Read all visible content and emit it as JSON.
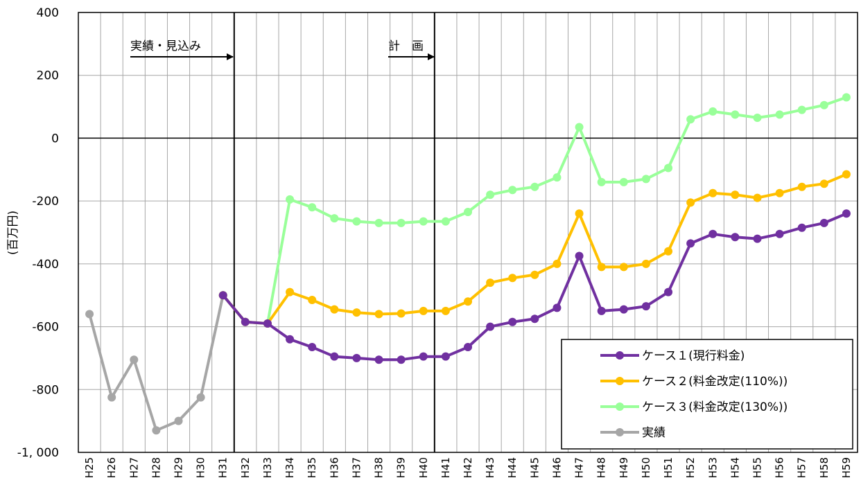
{
  "chart_data": {
    "type": "line",
    "ylabel": "(百万円)",
    "ylim": [
      -1000,
      400
    ],
    "yticks": [
      400,
      200,
      0,
      -200,
      -400,
      -600,
      -800,
      -1000
    ],
    "ytick_labels": [
      "400",
      "200",
      "0",
      "-200",
      "-400",
      "-600",
      "-800",
      "-1, 000"
    ],
    "categories": [
      "H25",
      "H26",
      "H27",
      "H28",
      "H29",
      "H30",
      "H31",
      "H32",
      "H33",
      "H34",
      "H35",
      "H36",
      "H37",
      "H38",
      "H39",
      "H40",
      "H41",
      "H42",
      "H43",
      "H44",
      "H45",
      "H46",
      "H47",
      "H48",
      "H49",
      "H50",
      "H51",
      "H52",
      "H53",
      "H54",
      "H55",
      "H56",
      "H57",
      "H58",
      "H59"
    ],
    "grid": true,
    "annotations": [
      {
        "text": "実績・見込み",
        "between": [
          "H25",
          "H31"
        ]
      },
      {
        "text": "計　画",
        "between": [
          "H39",
          "H40"
        ]
      }
    ],
    "dividers_after": [
      "H31",
      "H40"
    ],
    "legend_position": "bottom-right",
    "series": [
      {
        "name": "ケース１(現行料金)",
        "color": "#7030a0",
        "values": [
          null,
          null,
          null,
          null,
          null,
          null,
          -500,
          -585,
          -590,
          -640,
          -665,
          -695,
          -700,
          -705,
          -705,
          -695,
          -695,
          -665,
          -600,
          -585,
          -575,
          -540,
          -375,
          -550,
          -545,
          -535,
          -490,
          -335,
          -305,
          -315,
          -320,
          -305,
          -285,
          -270,
          -240
        ]
      },
      {
        "name": "ケース２(料金改定(110%))",
        "color": "#ffc000",
        "values": [
          null,
          null,
          null,
          null,
          null,
          null,
          -500,
          -585,
          -590,
          -490,
          -515,
          -545,
          -555,
          -560,
          -558,
          -550,
          -550,
          -520,
          -460,
          -445,
          -435,
          -400,
          -240,
          -410,
          -410,
          -400,
          -360,
          -205,
          -175,
          -180,
          -190,
          -175,
          -155,
          -145,
          -115
        ]
      },
      {
        "name": "ケース３(料金改定(130%))",
        "color": "#99ff99",
        "values": [
          null,
          null,
          null,
          null,
          null,
          null,
          -500,
          -585,
          -590,
          -195,
          -220,
          -255,
          -265,
          -270,
          -270,
          -265,
          -265,
          -235,
          -180,
          -165,
          -155,
          -125,
          35,
          -140,
          -140,
          -130,
          -95,
          60,
          85,
          75,
          65,
          75,
          90,
          105,
          130
        ]
      },
      {
        "name": "実績",
        "color": "#a6a6a6",
        "values": [
          -560,
          -825,
          -705,
          -930,
          -900,
          -825,
          -500,
          null,
          null,
          null,
          null,
          null,
          null,
          null,
          null,
          null,
          null,
          null,
          null,
          null,
          null,
          null,
          null,
          null,
          null,
          null,
          null,
          null,
          null,
          null,
          null,
          null,
          null,
          null,
          null
        ]
      }
    ]
  }
}
